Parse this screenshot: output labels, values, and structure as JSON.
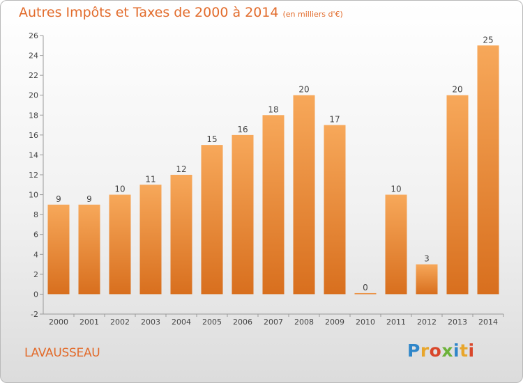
{
  "header": {
    "title": "Autres Impôts et Taxes de 2000 à 2014",
    "unit": "(en milliers d'€)"
  },
  "footer": {
    "place": "LAVAUSSEAU",
    "logo": "Proxiti"
  },
  "colors": {
    "accent": "#e26b2b",
    "bar_top": "#f7a85a",
    "bar_bottom": "#d86f1e",
    "logo_letters": [
      "#2f86c9",
      "#e8a62c",
      "#d9472b",
      "#6cb23a",
      "#2f86c9",
      "#e8a62c",
      "#d9472b"
    ]
  },
  "chart_data": {
    "type": "bar",
    "categories": [
      "2000",
      "2001",
      "2002",
      "2003",
      "2004",
      "2005",
      "2006",
      "2007",
      "2008",
      "2009",
      "2010",
      "2011",
      "2012",
      "2013",
      "2014"
    ],
    "values": [
      9,
      9,
      10,
      11,
      12,
      15,
      16,
      18,
      20,
      17,
      0,
      10,
      3,
      20,
      25
    ],
    "title": "Autres Impôts et Taxes de 2000 à 2014",
    "subtitle": "(en milliers d'€)",
    "xlabel": "",
    "ylabel": "",
    "ylim": [
      -2,
      26
    ],
    "yticks": [
      -2,
      0,
      2,
      4,
      6,
      8,
      10,
      12,
      14,
      16,
      18,
      20,
      22,
      24,
      26
    ],
    "grid": false,
    "legend": "none"
  }
}
